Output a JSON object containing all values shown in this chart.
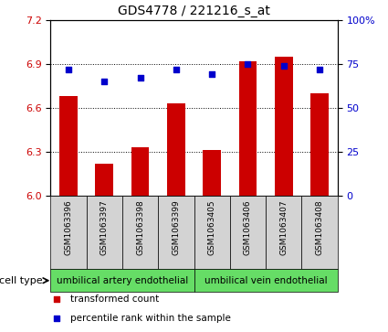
{
  "title": "GDS4778 / 221216_s_at",
  "samples": [
    "GSM1063396",
    "GSM1063397",
    "GSM1063398",
    "GSM1063399",
    "GSM1063405",
    "GSM1063406",
    "GSM1063407",
    "GSM1063408"
  ],
  "bar_values": [
    6.68,
    6.22,
    6.33,
    6.63,
    6.31,
    6.92,
    6.95,
    6.7
  ],
  "dot_values": [
    72,
    65,
    67,
    72,
    69,
    75,
    74,
    72
  ],
  "ylim_left": [
    6.0,
    7.2
  ],
  "ylim_right": [
    0,
    100
  ],
  "yticks_left": [
    6.0,
    6.3,
    6.6,
    6.9,
    7.2
  ],
  "yticks_right": [
    0,
    25,
    50,
    75,
    100
  ],
  "bar_color": "#cc0000",
  "dot_color": "#0000cc",
  "cell_types": [
    {
      "label": "umbilical artery endothelial",
      "start": 0,
      "end": 4
    },
    {
      "label": "umbilical vein endothelial",
      "start": 4,
      "end": 8
    }
  ],
  "legend_items": [
    {
      "label": "transformed count",
      "color": "#cc0000"
    },
    {
      "label": "percentile rank within the sample",
      "color": "#0000cc"
    }
  ],
  "bar_width": 0.5,
  "grid_linestyle": "dotted"
}
